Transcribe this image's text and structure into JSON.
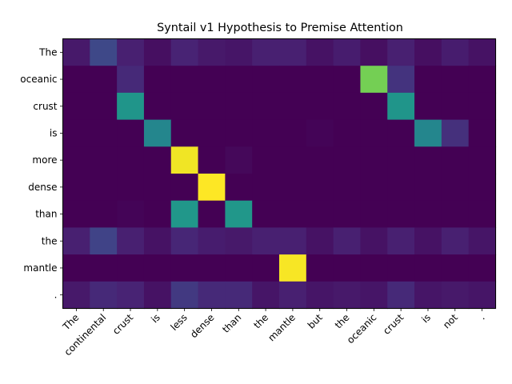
{
  "chart_data": {
    "type": "heatmap",
    "title": "Syntail v1 Hypothesis to Premise Attention",
    "xlabel": "",
    "ylabel": "",
    "x_labels": [
      "The",
      "continental",
      "crust",
      "is",
      "less",
      "dense",
      "than",
      "the",
      "mantle",
      "but",
      "the",
      "oceanic",
      "crust",
      "is",
      "not",
      "."
    ],
    "y_labels": [
      "The",
      "oceanic",
      "crust",
      "is",
      "more",
      "dense",
      "than",
      "the",
      "mantle",
      "."
    ],
    "value_range": [
      0,
      1
    ],
    "colormap": "viridis",
    "grid": false,
    "legend": "none",
    "values": [
      [
        0.07,
        0.22,
        0.09,
        0.04,
        0.1,
        0.07,
        0.06,
        0.09,
        0.09,
        0.05,
        0.08,
        0.04,
        0.09,
        0.04,
        0.08,
        0.05
      ],
      [
        0.0,
        0.0,
        0.12,
        0.0,
        0.0,
        0.0,
        0.0,
        0.0,
        0.0,
        0.0,
        0.0,
        0.79,
        0.15,
        0.0,
        0.0,
        0.0
      ],
      [
        0.0,
        0.0,
        0.52,
        0.0,
        0.0,
        0.0,
        0.0,
        0.0,
        0.0,
        0.0,
        0.0,
        0.0,
        0.52,
        0.0,
        0.0,
        0.0
      ],
      [
        0.0,
        0.0,
        0.0,
        0.46,
        0.0,
        0.0,
        0.0,
        0.0,
        0.0,
        0.01,
        0.0,
        0.0,
        0.0,
        0.46,
        0.14,
        0.0
      ],
      [
        0.0,
        0.0,
        0.0,
        0.0,
        0.98,
        0.0,
        0.02,
        0.0,
        0.0,
        0.0,
        0.0,
        0.0,
        0.0,
        0.0,
        0.0,
        0.0
      ],
      [
        0.0,
        0.0,
        0.0,
        0.0,
        0.0,
        1.0,
        0.0,
        0.0,
        0.0,
        0.0,
        0.0,
        0.0,
        0.0,
        0.0,
        0.0,
        0.0
      ],
      [
        0.0,
        0.0,
        0.01,
        0.0,
        0.53,
        0.0,
        0.53,
        0.0,
        0.0,
        0.0,
        0.0,
        0.0,
        0.0,
        0.0,
        0.0,
        0.0
      ],
      [
        0.09,
        0.2,
        0.09,
        0.05,
        0.11,
        0.08,
        0.07,
        0.09,
        0.09,
        0.05,
        0.09,
        0.05,
        0.09,
        0.05,
        0.09,
        0.06
      ],
      [
        0.0,
        0.0,
        0.0,
        0.0,
        0.0,
        0.0,
        0.0,
        0.0,
        0.99,
        0.0,
        0.0,
        0.0,
        0.0,
        0.0,
        0.0,
        0.0
      ],
      [
        0.07,
        0.12,
        0.1,
        0.05,
        0.17,
        0.12,
        0.12,
        0.06,
        0.09,
        0.06,
        0.07,
        0.06,
        0.12,
        0.06,
        0.07,
        0.06
      ]
    ]
  }
}
